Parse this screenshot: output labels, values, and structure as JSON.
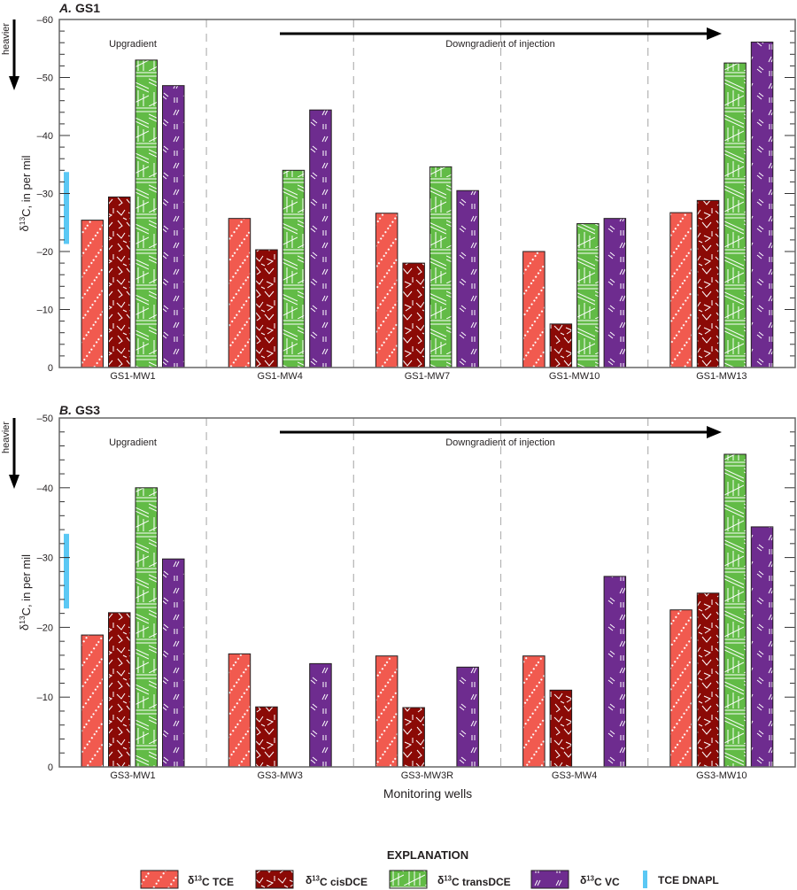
{
  "chart_data": [
    {
      "type": "bar",
      "panel_letter": "A.",
      "panel_name": "GS1",
      "ylabel": {
        "prefix": "δ",
        "sup": "13",
        "suffix": "C, in per mil"
      },
      "heavier_label": "heavier",
      "ylim": [
        -60,
        0
      ],
      "y_inverted": true,
      "yticks": [
        0,
        -10,
        -20,
        -30,
        -40,
        -50,
        -60
      ],
      "ytick_labels": [
        "0",
        "–10",
        "–20",
        "–30",
        "–40",
        "–50",
        "–60"
      ],
      "categories": [
        "GS1-MW1",
        "GS1-MW4",
        "GS1-MW7",
        "GS1-MW10",
        "GS1-MW13"
      ],
      "series": [
        {
          "name": "δ13C TCE",
          "values": [
            -25.4,
            -25.7,
            -26.6,
            -20.0,
            -26.7
          ]
        },
        {
          "name": "δ13C cisDCE",
          "values": [
            -29.4,
            -20.3,
            -18.0,
            -7.5,
            -28.8
          ]
        },
        {
          "name": "δ13C transDCE",
          "values": [
            -53.0,
            -34.0,
            -34.6,
            -24.8,
            -52.5
          ]
        },
        {
          "name": "δ13C VC",
          "values": [
            -48.6,
            -44.4,
            -30.5,
            -25.7,
            -56.1
          ]
        }
      ],
      "tce_dnapl_range": [
        -33.7,
        -21.3
      ],
      "annotations": {
        "upgradient": "Upgradient",
        "downgradient": "Downgradient of injection"
      }
    },
    {
      "type": "bar",
      "panel_letter": "B.",
      "panel_name": "GS3",
      "ylabel": {
        "prefix": "δ",
        "sup": "13",
        "suffix": "C, in per mil"
      },
      "heavier_label": "heavier",
      "ylim": [
        -50,
        0
      ],
      "y_inverted": true,
      "yticks": [
        0,
        -10,
        -20,
        -30,
        -40,
        -50
      ],
      "ytick_labels": [
        "0",
        "–10",
        "–20",
        "–30",
        "–40",
        "–50"
      ],
      "categories": [
        "GS3-MW1",
        "GS3-MW3",
        "GS3-MW3R",
        "GS3-MW4",
        "GS3-MW10"
      ],
      "series": [
        {
          "name": "δ13C TCE",
          "values": [
            -18.9,
            -16.2,
            -15.9,
            -15.9,
            -22.5
          ]
        },
        {
          "name": "δ13C cisDCE",
          "values": [
            -22.1,
            -8.6,
            -8.5,
            -11.0,
            -24.9
          ]
        },
        {
          "name": "δ13C transDCE",
          "values": [
            -40.0,
            null,
            null,
            null,
            -44.8
          ]
        },
        {
          "name": "δ13C VC",
          "values": [
            -29.8,
            -14.8,
            -14.3,
            -27.3,
            -34.4
          ]
        }
      ],
      "tce_dnapl_range": [
        -33.4,
        -22.7
      ],
      "annotations": {
        "upgradient": "Upgradient",
        "downgradient": "Downgradient of injection"
      },
      "xlabel": "Monitoring wells"
    }
  ],
  "legend": {
    "title": "EXPLANATION",
    "items": [
      {
        "prefix": "δ",
        "sup": "13",
        "suffix": "C TCE",
        "pattern": "diagonal-dots",
        "color": "#f15a4f"
      },
      {
        "prefix": "δ",
        "sup": "13",
        "suffix": "C cisDCE",
        "pattern": "random-v",
        "color": "#8b0a06"
      },
      {
        "prefix": "δ",
        "sup": "13",
        "suffix": "C transDCE",
        "pattern": "lines",
        "color": "#62bb46"
      },
      {
        "prefix": "δ",
        "sup": "13",
        "suffix": "C VC",
        "pattern": "double-dashes",
        "color": "#6e2c8f"
      },
      {
        "prefix": "",
        "sup": "",
        "suffix": "TCE DNAPL",
        "pattern": "solid-bar",
        "color": "#5bc8f4"
      }
    ]
  }
}
